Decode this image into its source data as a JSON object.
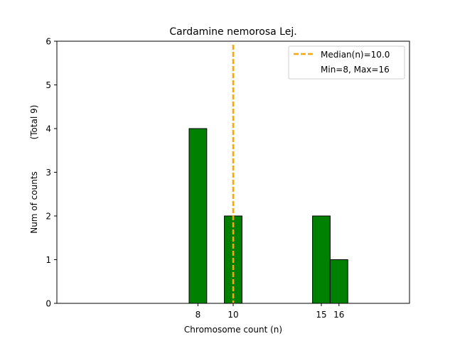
{
  "chart_data": {
    "type": "bar",
    "title": "Cardamine nemorosa Lej.",
    "xlabel": "Chromosome count (n)",
    "ylabel": "Num of counts",
    "ylabel_total": "(Total 9)",
    "xlim": [
      0,
      20
    ],
    "ylim": [
      0,
      6
    ],
    "xticks": [
      8,
      10,
      15,
      16
    ],
    "yticks": [
      0,
      1,
      2,
      3,
      4,
      5,
      6
    ],
    "bars": [
      {
        "x": 8,
        "value": 4
      },
      {
        "x": 10,
        "value": 2
      },
      {
        "x": 15,
        "value": 2
      },
      {
        "x": 16,
        "value": 1
      }
    ],
    "bar_color": "#008000",
    "median": 10.0,
    "median_color": "#FFA500",
    "legend": {
      "position": "upper-right",
      "entries": [
        "Median(n)=10.0",
        "Min=8, Max=16"
      ]
    },
    "grid": false
  }
}
